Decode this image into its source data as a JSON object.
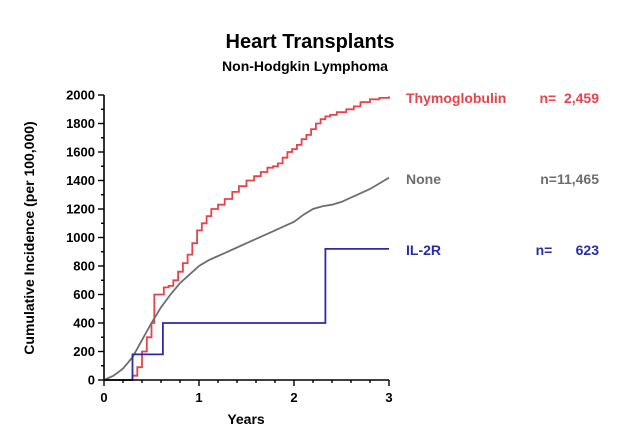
{
  "chart_data": {
    "type": "line",
    "title": "Heart Transplants",
    "subtitle": "Non-Hodgkin Lymphoma",
    "xlabel": "Years",
    "ylabel": "Cumulative Incidence (per 100,000)",
    "xlim": [
      0,
      3
    ],
    "ylim": [
      0,
      2000
    ],
    "xticks": [
      "0",
      "1",
      "2",
      "3"
    ],
    "yticks": [
      "0",
      "200",
      "400",
      "600",
      "800",
      "1000",
      "1200",
      "1400",
      "1600",
      "1800",
      "2000"
    ],
    "grid": false,
    "legend": "right",
    "series": [
      {
        "name": "Thymoglobulin",
        "n_label": "n=  2,459",
        "color": "#e8424a",
        "step": true,
        "x": [
          0,
          0.3,
          0.35,
          0.4,
          0.45,
          0.5,
          0.53,
          0.58,
          0.63,
          0.68,
          0.73,
          0.78,
          0.83,
          0.88,
          0.93,
          0.98,
          1.03,
          1.08,
          1.13,
          1.2,
          1.27,
          1.35,
          1.42,
          1.5,
          1.58,
          1.65,
          1.72,
          1.78,
          1.83,
          1.88,
          1.93,
          1.98,
          2.03,
          2.08,
          2.13,
          2.18,
          2.23,
          2.28,
          2.33,
          2.38,
          2.45,
          2.55,
          2.63,
          2.7,
          2.8,
          2.9,
          3.0
        ],
        "y": [
          0,
          30,
          90,
          200,
          300,
          400,
          600,
          600,
          650,
          660,
          700,
          760,
          820,
          880,
          960,
          1050,
          1100,
          1150,
          1200,
          1230,
          1270,
          1320,
          1360,
          1400,
          1430,
          1460,
          1490,
          1500,
          1520,
          1560,
          1600,
          1620,
          1650,
          1690,
          1720,
          1760,
          1800,
          1830,
          1850,
          1860,
          1880,
          1900,
          1920,
          1950,
          1970,
          1980,
          1990
        ]
      },
      {
        "name": "None",
        "n_label": "n=11,465",
        "color": "#6e6e6e",
        "step": false,
        "x": [
          0,
          0.1,
          0.2,
          0.3,
          0.4,
          0.5,
          0.6,
          0.7,
          0.8,
          0.9,
          1.0,
          1.1,
          1.2,
          1.3,
          1.4,
          1.5,
          1.6,
          1.7,
          1.8,
          1.9,
          2.0,
          2.1,
          2.2,
          2.3,
          2.4,
          2.5,
          2.6,
          2.7,
          2.8,
          2.9,
          3.0
        ],
        "y": [
          0,
          30,
          80,
          160,
          280,
          400,
          510,
          600,
          680,
          740,
          800,
          840,
          870,
          900,
          930,
          960,
          990,
          1020,
          1050,
          1080,
          1110,
          1160,
          1200,
          1220,
          1230,
          1250,
          1280,
          1310,
          1340,
          1380,
          1420
        ]
      },
      {
        "name": "IL-2R",
        "n_label": "n=      623",
        "color": "#2b2ba8",
        "step": true,
        "x": [
          0,
          0.3,
          0.62,
          2.33,
          3.0
        ],
        "y": [
          0,
          180,
          400,
          920,
          920
        ]
      }
    ]
  }
}
